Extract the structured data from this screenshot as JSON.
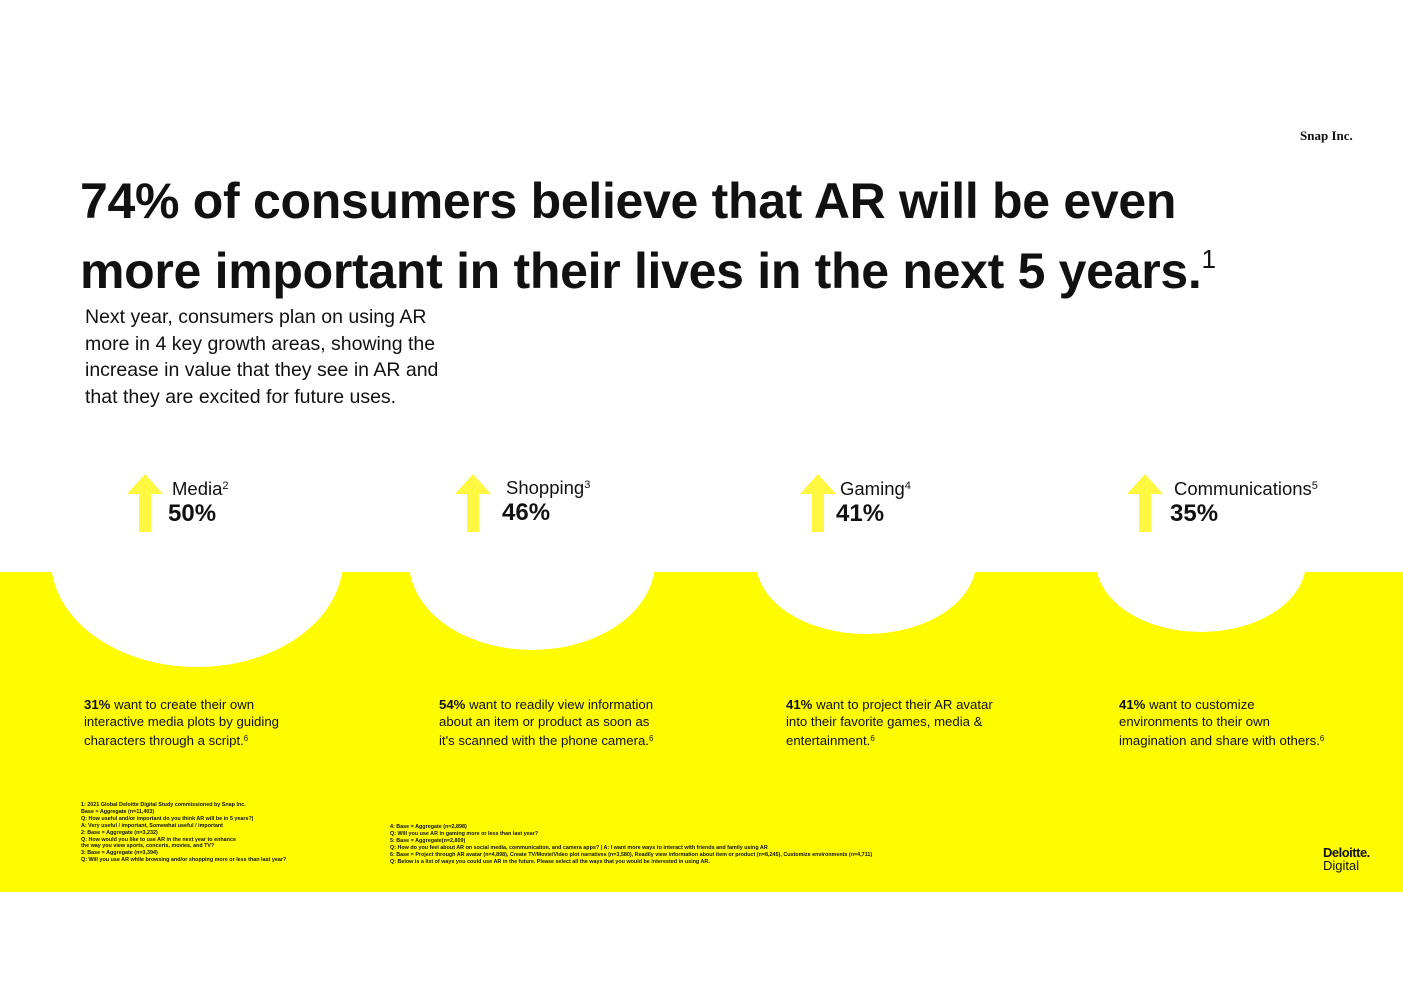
{
  "header": {
    "brand": "Snap Inc."
  },
  "title": {
    "lines": [
      "74% of consumers believe that AR will be even",
      "more important in their lives in the next 5 years."
    ],
    "note": "1"
  },
  "subtitle": {
    "lines": [
      "Next year, consumers plan on using AR",
      "more in 4 key growth areas, showing the",
      "increase in value that they see in AR and",
      "that they are excited for future uses."
    ]
  },
  "areas": [
    {
      "name": "Media",
      "note": "2",
      "percent": "50%",
      "detail": {
        "stat": "31%",
        "lines": [
          "want to create their own",
          "interactive media plots by guiding",
          "characters through a script."
        ],
        "note": "6"
      }
    },
    {
      "name": "Shopping",
      "note": "3",
      "percent": "46%",
      "detail": {
        "stat": "54%",
        "lines": [
          "want to readily view information",
          "about an item or product as soon as",
          "it's scanned with the phone camera."
        ],
        "note": "6"
      }
    },
    {
      "name": "Gaming",
      "note": "4",
      "percent": "41%",
      "detail": {
        "stat": "41%",
        "lines": [
          "want to project their AR avatar",
          "into their favorite games, media &",
          "entertainment."
        ],
        "note": "6"
      }
    },
    {
      "name": "Communications",
      "note": "5",
      "percent": "35%",
      "detail": {
        "stat": "41%",
        "lines": [
          "want to customize",
          "environments to their own",
          "imagination and share with others."
        ],
        "note": "6"
      }
    }
  ],
  "footnotes": {
    "left": [
      "1: 2021 Global Deloitte Digital Study commissioned by Snap Inc.",
      "Base = Aggregate (n=11,403)",
      "Q: How useful and/or important do you think AR will be in 5 years?|",
      "A: Very useful / important, Somewhat useful / important",
      "2: Base = Aggregate (n=3,232)",
      "Q: How would you like to use AR in the next year to enhance",
      "the way you view sports, concerts, movies, and TV?",
      "3: Base = Aggregate (n=3,394)",
      "Q: Will you use AR while browsing and/or shopping more or less than last year?"
    ],
    "middle": [
      "4: Base = Aggregate (n=2,898)",
      "Q: Will you use AR in gaming more or less than last year?",
      "5: Base = Aggregate(n=2,809)",
      "Q: How do you feel about AR on social media, communication, and camera apps? | A: I want more ways to interact with friends and family using AR",
      "6: Base = Project through AR avatar (n=4,898), Create TV/Movie/Video plot narratives (n=3,580), Readily view information about item or product (n=8,245), Customize environments (n=4,711)",
      "Q: Below is a list of ways you could use AR in the future. Please select all the ways that you would be interested in using AR."
    ]
  },
  "logo": {
    "line1": "Deloitte.",
    "line2": "Digital"
  }
}
